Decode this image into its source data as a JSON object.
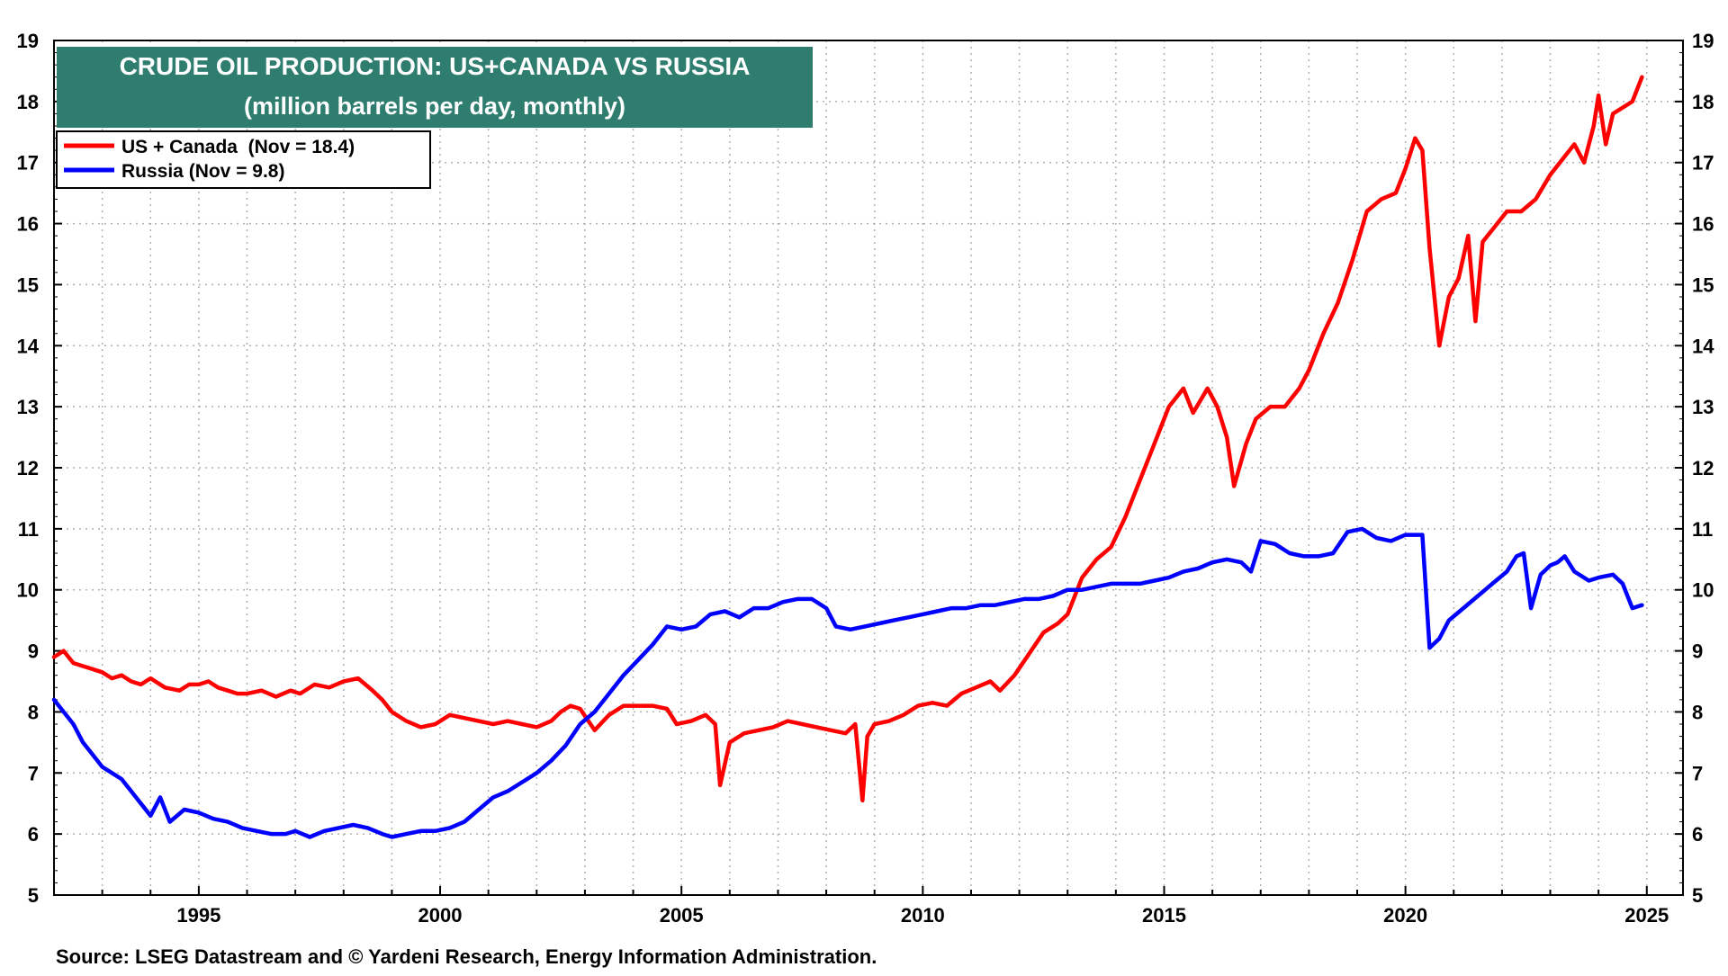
{
  "chart_data": {
    "type": "line",
    "title": "CRUDE OIL PRODUCTION: US+CANADA VS RUSSIA",
    "subtitle": "(million barrels per day, monthly)",
    "source": "Source: LSEG Datastream and © Yardeni Research, Energy Information Administration.",
    "xlim": [
      1992.0,
      2025.75
    ],
    "ylim": [
      5,
      19
    ],
    "y_ticks": [
      5,
      6,
      7,
      8,
      9,
      10,
      11,
      12,
      13,
      14,
      15,
      16,
      17,
      18,
      19
    ],
    "x_ticks": [
      1995,
      2000,
      2005,
      2010,
      2015,
      2020,
      2025
    ],
    "grid": true,
    "legend_position": "top-left",
    "colors": {
      "title_bg": "#2e7d6f",
      "title_text": "#ffffff",
      "us_canada": "#ff0000",
      "russia": "#0000ff",
      "grid": "#b0b0b0",
      "axis": "#000000"
    },
    "series": [
      {
        "name": "US + Canada",
        "legend": "US + Canada  (Nov = 18.4)",
        "color": "#ff0000",
        "x": [
          1992.0,
          1992.2,
          1992.4,
          1992.6,
          1992.8,
          1993.0,
          1993.2,
          1993.4,
          1993.6,
          1993.8,
          1994.0,
          1994.3,
          1994.6,
          1994.8,
          1995.0,
          1995.2,
          1995.4,
          1995.6,
          1995.8,
          1996.0,
          1996.3,
          1996.6,
          1996.9,
          1997.1,
          1997.4,
          1997.7,
          1998.0,
          1998.3,
          1998.6,
          1998.8,
          1999.0,
          1999.3,
          1999.6,
          1999.9,
          2000.2,
          2000.5,
          2000.8,
          2001.1,
          2001.4,
          2001.7,
          2002.0,
          2002.3,
          2002.5,
          2002.7,
          2002.9,
          2003.2,
          2003.5,
          2003.8,
          2004.1,
          2004.4,
          2004.7,
          2004.9,
          2005.2,
          2005.5,
          2005.7,
          2005.8,
          2006.0,
          2006.3,
          2006.6,
          2006.9,
          2007.2,
          2007.5,
          2007.8,
          2008.1,
          2008.4,
          2008.6,
          2008.75,
          2008.85,
          2009.0,
          2009.3,
          2009.6,
          2009.9,
          2010.2,
          2010.5,
          2010.8,
          2011.1,
          2011.4,
          2011.6,
          2011.9,
          2012.2,
          2012.5,
          2012.8,
          2013.0,
          2013.3,
          2013.6,
          2013.9,
          2014.2,
          2014.5,
          2014.8,
          2015.1,
          2015.4,
          2015.6,
          2015.9,
          2016.1,
          2016.3,
          2016.45,
          2016.7,
          2016.9,
          2017.2,
          2017.5,
          2017.8,
          2018.0,
          2018.3,
          2018.6,
          2018.9,
          2019.2,
          2019.5,
          2019.8,
          2020.0,
          2020.2,
          2020.35,
          2020.5,
          2020.7,
          2020.9,
          2021.1,
          2021.3,
          2021.45,
          2021.6,
          2021.8,
          2022.1,
          2022.4,
          2022.7,
          2023.0,
          2023.3,
          2023.5,
          2023.7,
          2023.9,
          2024.0,
          2024.15,
          2024.3,
          2024.5,
          2024.7,
          2024.9
        ],
        "values": [
          8.9,
          9.0,
          8.8,
          8.75,
          8.7,
          8.65,
          8.55,
          8.6,
          8.5,
          8.45,
          8.55,
          8.4,
          8.35,
          8.45,
          8.45,
          8.5,
          8.4,
          8.35,
          8.3,
          8.3,
          8.35,
          8.25,
          8.35,
          8.3,
          8.45,
          8.4,
          8.5,
          8.55,
          8.35,
          8.2,
          8.0,
          7.85,
          7.75,
          7.8,
          7.95,
          7.9,
          7.85,
          7.8,
          7.85,
          7.8,
          7.75,
          7.85,
          8.0,
          8.1,
          8.05,
          7.7,
          7.95,
          8.1,
          8.1,
          8.1,
          8.05,
          7.8,
          7.85,
          7.95,
          7.8,
          6.8,
          7.5,
          7.65,
          7.7,
          7.75,
          7.85,
          7.8,
          7.75,
          7.7,
          7.65,
          7.8,
          6.55,
          7.6,
          7.8,
          7.85,
          7.95,
          8.1,
          8.15,
          8.1,
          8.3,
          8.4,
          8.5,
          8.35,
          8.6,
          8.95,
          9.3,
          9.45,
          9.6,
          10.2,
          10.5,
          10.7,
          11.2,
          11.8,
          12.4,
          13.0,
          13.3,
          12.9,
          13.3,
          13.0,
          12.5,
          11.7,
          12.4,
          12.8,
          13.0,
          13.0,
          13.3,
          13.6,
          14.2,
          14.7,
          15.4,
          16.2,
          16.4,
          16.5,
          16.9,
          17.4,
          17.2,
          15.6,
          14.0,
          14.8,
          15.1,
          15.8,
          14.4,
          15.7,
          15.9,
          16.2,
          16.2,
          16.4,
          16.8,
          17.1,
          17.3,
          17.0,
          17.6,
          18.1,
          17.3,
          17.8,
          17.9,
          18.0,
          18.4
        ]
      },
      {
        "name": "Russia",
        "legend": "Russia (Nov = 9.8)",
        "color": "#0000ff",
        "x": [
          1992.0,
          1992.2,
          1992.4,
          1992.6,
          1992.8,
          1993.0,
          1993.2,
          1993.4,
          1993.6,
          1993.8,
          1994.0,
          1994.2,
          1994.4,
          1994.7,
          1995.0,
          1995.3,
          1995.6,
          1995.9,
          1996.2,
          1996.5,
          1996.8,
          1997.0,
          1997.3,
          1997.6,
          1997.9,
          1998.2,
          1998.5,
          1998.8,
          1999.0,
          1999.3,
          1999.6,
          1999.9,
          2000.2,
          2000.5,
          2000.8,
          2001.1,
          2001.4,
          2001.7,
          2002.0,
          2002.3,
          2002.6,
          2002.9,
          2003.2,
          2003.5,
          2003.8,
          2004.1,
          2004.4,
          2004.7,
          2005.0,
          2005.3,
          2005.6,
          2005.9,
          2006.2,
          2006.5,
          2006.8,
          2007.1,
          2007.4,
          2007.7,
          2008.0,
          2008.2,
          2008.5,
          2008.8,
          2009.1,
          2009.4,
          2009.7,
          2010.0,
          2010.3,
          2010.6,
          2010.9,
          2011.2,
          2011.5,
          2011.8,
          2012.1,
          2012.4,
          2012.7,
          2013.0,
          2013.3,
          2013.6,
          2013.9,
          2014.2,
          2014.5,
          2014.8,
          2015.1,
          2015.4,
          2015.7,
          2016.0,
          2016.3,
          2016.6,
          2016.8,
          2017.0,
          2017.3,
          2017.6,
          2017.9,
          2018.2,
          2018.5,
          2018.8,
          2019.1,
          2019.4,
          2019.7,
          2020.0,
          2020.2,
          2020.35,
          2020.5,
          2020.7,
          2020.9,
          2021.2,
          2021.5,
          2021.8,
          2022.1,
          2022.3,
          2022.45,
          2022.6,
          2022.8,
          2023.0,
          2023.15,
          2023.3,
          2023.5,
          2023.8,
          2024.0,
          2024.3,
          2024.5,
          2024.7,
          2024.9
        ],
        "values": [
          8.2,
          8.0,
          7.8,
          7.5,
          7.3,
          7.1,
          7.0,
          6.9,
          6.7,
          6.5,
          6.3,
          6.6,
          6.2,
          6.4,
          6.35,
          6.25,
          6.2,
          6.1,
          6.05,
          6.0,
          6.0,
          6.05,
          5.95,
          6.05,
          6.1,
          6.15,
          6.1,
          6.0,
          5.95,
          6.0,
          6.05,
          6.05,
          6.1,
          6.2,
          6.4,
          6.6,
          6.7,
          6.85,
          7.0,
          7.2,
          7.45,
          7.8,
          8.0,
          8.3,
          8.6,
          8.85,
          9.1,
          9.4,
          9.35,
          9.4,
          9.6,
          9.65,
          9.55,
          9.7,
          9.7,
          9.8,
          9.85,
          9.85,
          9.7,
          9.4,
          9.35,
          9.4,
          9.45,
          9.5,
          9.55,
          9.6,
          9.65,
          9.7,
          9.7,
          9.75,
          9.75,
          9.8,
          9.85,
          9.85,
          9.9,
          10.0,
          10.0,
          10.05,
          10.1,
          10.1,
          10.1,
          10.15,
          10.2,
          10.3,
          10.35,
          10.45,
          10.5,
          10.45,
          10.3,
          10.8,
          10.75,
          10.6,
          10.55,
          10.55,
          10.6,
          10.95,
          11.0,
          10.85,
          10.8,
          10.9,
          10.9,
          10.9,
          9.05,
          9.2,
          9.5,
          9.7,
          9.9,
          10.1,
          10.3,
          10.55,
          10.6,
          9.7,
          10.25,
          10.4,
          10.45,
          10.55,
          10.3,
          10.15,
          10.2,
          10.25,
          10.1,
          9.7,
          9.75
        ]
      }
    ]
  }
}
